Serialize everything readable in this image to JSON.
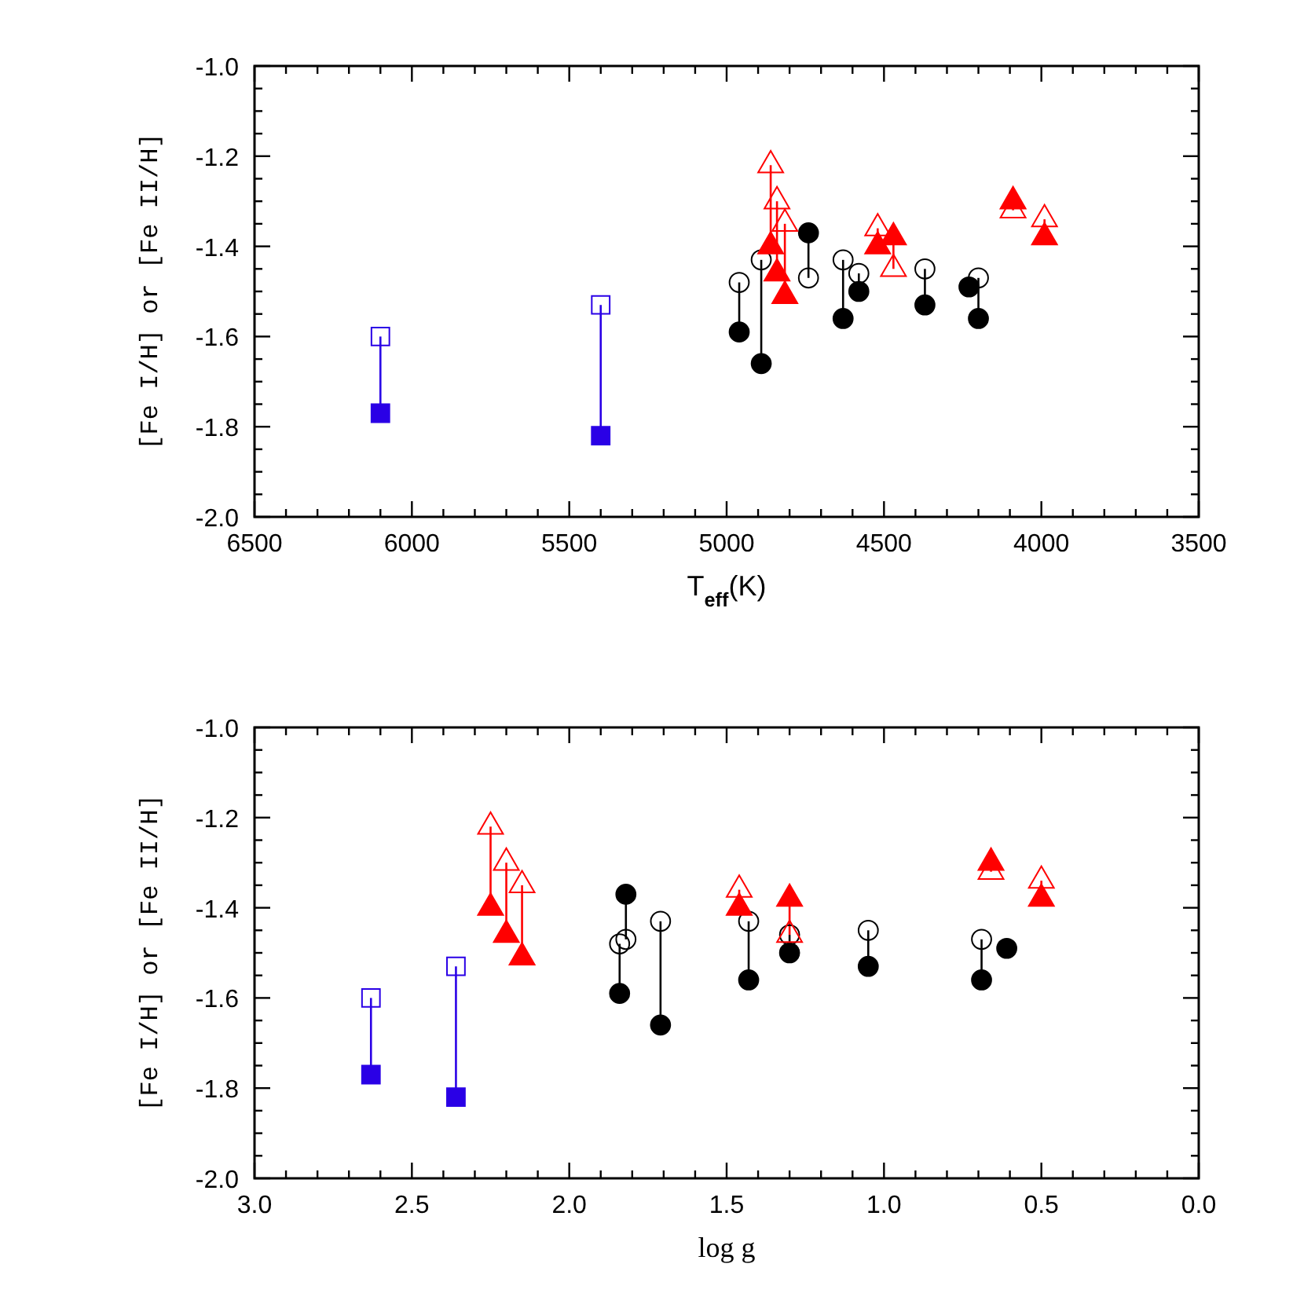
{
  "chart_data": [
    {
      "type": "scatter",
      "xlabel": "T$_{eff}$(K)",
      "ylabel": "[Fe I/H] or [Fe II/H]",
      "xlim": [
        6500,
        3500
      ],
      "ylim": [
        -2.0,
        -1.0
      ],
      "xticks": [
        6500,
        {
          "value": 6400,
          "label": null
        },
        {
          "value": 6300,
          "label": null
        },
        {
          "value": 6200,
          "label": null
        },
        {
          "value": 6100,
          "label": null
        },
        6000,
        {
          "value": 5900,
          "label": null
        },
        {
          "value": 5800,
          "label": null
        },
        {
          "value": 5700,
          "label": null
        },
        {
          "value": 5600,
          "label": null
        },
        5500,
        {
          "value": 5400,
          "label": null
        },
        {
          "value": 5300,
          "label": null
        },
        {
          "value": 5200,
          "label": null
        },
        {
          "value": 5100,
          "label": null
        },
        5000,
        {
          "value": 4900,
          "label": null
        },
        {
          "value": 4800,
          "label": null
        },
        {
          "value": 4700,
          "label": null
        },
        {
          "value": 4600,
          "label": null
        },
        4500,
        {
          "value": 4400,
          "label": null
        },
        {
          "value": 4300,
          "label": null
        },
        {
          "value": 4200,
          "label": null
        },
        {
          "value": 4100,
          "label": null
        },
        4000,
        {
          "value": 3900,
          "label": null
        },
        {
          "value": 3800,
          "label": null
        },
        {
          "value": 3700,
          "label": null
        },
        {
          "value": 3600,
          "label": null
        },
        3500
      ],
      "yticks": [
        {
          "value": -2.0,
          "label": "-2.0"
        },
        {
          "value": -1.95,
          "label": null
        },
        {
          "value": -1.9,
          "label": null
        },
        {
          "value": -1.85,
          "label": null
        },
        {
          "value": -1.8,
          "label": "-1.8"
        },
        {
          "value": -1.75,
          "label": null
        },
        {
          "value": -1.7,
          "label": null
        },
        {
          "value": -1.65,
          "label": null
        },
        {
          "value": -1.6,
          "label": "-1.6"
        },
        {
          "value": -1.55,
          "label": null
        },
        {
          "value": -1.5,
          "label": null
        },
        {
          "value": -1.45,
          "label": null
        },
        {
          "value": -1.4,
          "label": "-1.4"
        },
        {
          "value": -1.35,
          "label": null
        },
        {
          "value": -1.3,
          "label": null
        },
        {
          "value": -1.25,
          "label": null
        },
        {
          "value": -1.2,
          "label": "-1.2"
        },
        {
          "value": -1.15,
          "label": null
        },
        {
          "value": -1.1,
          "label": null
        },
        {
          "value": -1.05,
          "label": null
        },
        {
          "value": -1.0,
          "label": "-1.0"
        }
      ],
      "series": [
        {
          "type": "line",
          "color": "#2a00e6",
          "x": [
            6100,
            6100
          ],
          "values": [
            -1.77,
            -1.6
          ]
        },
        {
          "type": "line",
          "color": "#2a00e6",
          "x": [
            5400,
            5400
          ],
          "values": [
            -1.82,
            -1.53
          ]
        },
        {
          "type": "line",
          "color": "#000000",
          "x": [
            4960,
            4960
          ],
          "values": [
            -1.59,
            -1.48
          ]
        },
        {
          "type": "line",
          "color": "#000000",
          "x": [
            4890,
            4890
          ],
          "values": [
            -1.66,
            -1.43
          ]
        },
        {
          "type": "line",
          "color": "#000000",
          "x": [
            4740,
            4740
          ],
          "values": [
            -1.37,
            -1.47
          ]
        },
        {
          "type": "line",
          "color": "#000000",
          "x": [
            4630,
            4630
          ],
          "values": [
            -1.56,
            -1.43
          ]
        },
        {
          "type": "line",
          "color": "#000000",
          "x": [
            4580,
            4580
          ],
          "values": [
            -1.5,
            -1.46
          ]
        },
        {
          "type": "line",
          "color": "#000000",
          "x": [
            4370,
            4370
          ],
          "values": [
            -1.53,
            -1.45
          ]
        },
        {
          "type": "line",
          "color": "#000000",
          "x": [
            4200,
            4200
          ],
          "values": [
            -1.56,
            -1.47
          ]
        },
        {
          "type": "line",
          "color": "#ff0000",
          "x": [
            4860,
            4860
          ],
          "values": [
            -1.4,
            -1.22
          ]
        },
        {
          "type": "line",
          "color": "#ff0000",
          "x": [
            4840,
            4840
          ],
          "values": [
            -1.46,
            -1.3
          ]
        },
        {
          "type": "line",
          "color": "#ff0000",
          "x": [
            4815,
            4815
          ],
          "values": [
            -1.51,
            -1.35
          ]
        },
        {
          "type": "line",
          "color": "#ff0000",
          "x": [
            4520,
            4520
          ],
          "values": [
            -1.4,
            -1.36
          ]
        },
        {
          "type": "line",
          "color": "#ff0000",
          "x": [
            4470,
            4470
          ],
          "values": [
            -1.38,
            -1.45
          ]
        },
        {
          "type": "line",
          "color": "#ff0000",
          "x": [
            4090,
            4090
          ],
          "values": [
            -1.3,
            -1.32
          ]
        },
        {
          "type": "line",
          "color": "#ff0000",
          "x": [
            3990,
            3990
          ],
          "values": [
            -1.38,
            -1.34
          ]
        },
        {
          "color": "#2a00e6",
          "marker": "square",
          "x": [
            6100,
            5400
          ],
          "values": [
            -1.77,
            -1.82
          ]
        },
        {
          "color": "#2a00e6",
          "marker": "square-open",
          "x": [
            6100,
            5400
          ],
          "values": [
            -1.6,
            -1.53
          ]
        },
        {
          "color": "#000000",
          "marker": "circle",
          "x": [
            4960,
            4890,
            4740,
            4630,
            4580,
            4370,
            4230,
            4200
          ],
          "values": [
            -1.59,
            -1.66,
            -1.37,
            -1.56,
            -1.5,
            -1.53,
            -1.49,
            -1.56
          ]
        },
        {
          "color": "#000000",
          "marker": "circle-open",
          "x": [
            4960,
            4890,
            4740,
            4630,
            4580,
            4370,
            4200
          ],
          "values": [
            -1.48,
            -1.43,
            -1.47,
            -1.43,
            -1.46,
            -1.45,
            -1.47
          ]
        },
        {
          "color": "#ff0000",
          "marker": "triangle",
          "x": [
            4860,
            4840,
            4815,
            4520,
            4470,
            4090,
            3990
          ],
          "values": [
            -1.4,
            -1.46,
            -1.51,
            -1.4,
            -1.38,
            -1.3,
            -1.38
          ]
        },
        {
          "color": "#ff0000",
          "marker": "triangle-open",
          "x": [
            4860,
            4840,
            4815,
            4520,
            4470,
            4090,
            3990
          ],
          "values": [
            -1.22,
            -1.3,
            -1.35,
            -1.36,
            -1.45,
            -1.32,
            -1.34
          ]
        }
      ]
    },
    {
      "type": "scatter",
      "xlabel": "log g",
      "ylabel": "[Fe I/H] or [Fe II/H]",
      "xlim": [
        3.0,
        0.0
      ],
      "ylim": [
        -2.0,
        -1.0
      ],
      "xticks": [
        {
          "value": 3.0,
          "label": "3.0"
        },
        {
          "value": 2.9,
          "label": null
        },
        {
          "value": 2.8,
          "label": null
        },
        {
          "value": 2.7,
          "label": null
        },
        {
          "value": 2.6,
          "label": null
        },
        {
          "value": 2.5,
          "label": "2.5"
        },
        {
          "value": 2.4,
          "label": null
        },
        {
          "value": 2.3,
          "label": null
        },
        {
          "value": 2.2,
          "label": null
        },
        {
          "value": 2.1,
          "label": null
        },
        {
          "value": 2.0,
          "label": "2.0"
        },
        {
          "value": 1.9,
          "label": null
        },
        {
          "value": 1.8,
          "label": null
        },
        {
          "value": 1.7,
          "label": null
        },
        {
          "value": 1.6,
          "label": null
        },
        {
          "value": 1.5,
          "label": "1.5"
        },
        {
          "value": 1.4,
          "label": null
        },
        {
          "value": 1.3,
          "label": null
        },
        {
          "value": 1.2,
          "label": null
        },
        {
          "value": 1.1,
          "label": null
        },
        {
          "value": 1.0,
          "label": "1.0"
        },
        {
          "value": 0.9,
          "label": null
        },
        {
          "value": 0.8,
          "label": null
        },
        {
          "value": 0.7,
          "label": null
        },
        {
          "value": 0.6,
          "label": null
        },
        {
          "value": 0.5,
          "label": "0.5"
        },
        {
          "value": 0.4,
          "label": null
        },
        {
          "value": 0.3,
          "label": null
        },
        {
          "value": 0.2,
          "label": null
        },
        {
          "value": 0.1,
          "label": null
        },
        {
          "value": 0.0,
          "label": "0.0"
        }
      ],
      "yticks": [
        {
          "value": -2.0,
          "label": "-2.0"
        },
        {
          "value": -1.95,
          "label": null
        },
        {
          "value": -1.9,
          "label": null
        },
        {
          "value": -1.85,
          "label": null
        },
        {
          "value": -1.8,
          "label": "-1.8"
        },
        {
          "value": -1.75,
          "label": null
        },
        {
          "value": -1.7,
          "label": null
        },
        {
          "value": -1.65,
          "label": null
        },
        {
          "value": -1.6,
          "label": "-1.6"
        },
        {
          "value": -1.55,
          "label": null
        },
        {
          "value": -1.5,
          "label": null
        },
        {
          "value": -1.45,
          "label": null
        },
        {
          "value": -1.4,
          "label": "-1.4"
        },
        {
          "value": -1.35,
          "label": null
        },
        {
          "value": -1.3,
          "label": null
        },
        {
          "value": -1.25,
          "label": null
        },
        {
          "value": -1.2,
          "label": "-1.2"
        },
        {
          "value": -1.15,
          "label": null
        },
        {
          "value": -1.1,
          "label": null
        },
        {
          "value": -1.05,
          "label": null
        },
        {
          "value": -1.0,
          "label": "-1.0"
        }
      ],
      "series": [
        {
          "type": "line",
          "color": "#2a00e6",
          "x": [
            2.63,
            2.63
          ],
          "values": [
            -1.77,
            -1.6
          ]
        },
        {
          "type": "line",
          "color": "#2a00e6",
          "x": [
            2.36,
            2.36
          ],
          "values": [
            -1.82,
            -1.53
          ]
        },
        {
          "type": "line",
          "color": "#000000",
          "x": [
            1.84,
            1.84
          ],
          "values": [
            -1.59,
            -1.48
          ]
        },
        {
          "type": "line",
          "color": "#000000",
          "x": [
            1.82,
            1.82
          ],
          "values": [
            -1.37,
            -1.47
          ]
        },
        {
          "type": "line",
          "color": "#000000",
          "x": [
            1.71,
            1.71
          ],
          "values": [
            -1.66,
            -1.43
          ]
        },
        {
          "type": "line",
          "color": "#000000",
          "x": [
            1.43,
            1.43
          ],
          "values": [
            -1.56,
            -1.43
          ]
        },
        {
          "type": "line",
          "color": "#000000",
          "x": [
            1.3,
            1.3
          ],
          "values": [
            -1.5,
            -1.46
          ]
        },
        {
          "type": "line",
          "color": "#000000",
          "x": [
            1.05,
            1.05
          ],
          "values": [
            -1.53,
            -1.45
          ]
        },
        {
          "type": "line",
          "color": "#000000",
          "x": [
            0.69,
            0.69
          ],
          "values": [
            -1.56,
            -1.47
          ]
        },
        {
          "type": "line",
          "color": "#ff0000",
          "x": [
            2.25,
            2.25
          ],
          "values": [
            -1.4,
            -1.22
          ]
        },
        {
          "type": "line",
          "color": "#ff0000",
          "x": [
            2.2,
            2.2
          ],
          "values": [
            -1.46,
            -1.3
          ]
        },
        {
          "type": "line",
          "color": "#ff0000",
          "x": [
            2.15,
            2.15
          ],
          "values": [
            -1.51,
            -1.35
          ]
        },
        {
          "type": "line",
          "color": "#ff0000",
          "x": [
            1.46,
            1.46
          ],
          "values": [
            -1.4,
            -1.36
          ]
        },
        {
          "type": "line",
          "color": "#ff0000",
          "x": [
            1.3,
            1.3
          ],
          "values": [
            -1.38,
            -1.46
          ]
        },
        {
          "type": "line",
          "color": "#ff0000",
          "x": [
            0.66,
            0.66
          ],
          "values": [
            -1.3,
            -1.32
          ]
        },
        {
          "type": "line",
          "color": "#ff0000",
          "x": [
            0.5,
            0.5
          ],
          "values": [
            -1.38,
            -1.34
          ]
        },
        {
          "color": "#2a00e6",
          "marker": "square",
          "x": [
            2.63,
            2.36
          ],
          "values": [
            -1.77,
            -1.82
          ]
        },
        {
          "color": "#2a00e6",
          "marker": "square-open",
          "x": [
            2.63,
            2.36
          ],
          "values": [
            -1.6,
            -1.53
          ]
        },
        {
          "color": "#000000",
          "marker": "circle",
          "x": [
            1.84,
            1.82,
            1.71,
            1.43,
            1.3,
            1.05,
            0.69,
            0.61
          ],
          "values": [
            -1.59,
            -1.37,
            -1.66,
            -1.56,
            -1.5,
            -1.53,
            -1.56,
            -1.49
          ]
        },
        {
          "color": "#000000",
          "marker": "circle-open",
          "x": [
            1.84,
            1.82,
            1.71,
            1.43,
            1.3,
            1.05,
            0.69
          ],
          "values": [
            -1.48,
            -1.47,
            -1.43,
            -1.43,
            -1.46,
            -1.45,
            -1.47
          ]
        },
        {
          "color": "#ff0000",
          "marker": "triangle",
          "x": [
            2.25,
            2.2,
            2.15,
            1.46,
            1.3,
            0.66,
            0.5
          ],
          "values": [
            -1.4,
            -1.46,
            -1.51,
            -1.4,
            -1.38,
            -1.3,
            -1.38
          ]
        },
        {
          "color": "#ff0000",
          "marker": "triangle-open",
          "x": [
            2.25,
            2.2,
            2.15,
            1.46,
            1.3,
            0.66,
            0.5
          ],
          "values": [
            -1.22,
            -1.3,
            -1.35,
            -1.36,
            -1.46,
            -1.32,
            -1.34
          ]
        }
      ]
    }
  ]
}
